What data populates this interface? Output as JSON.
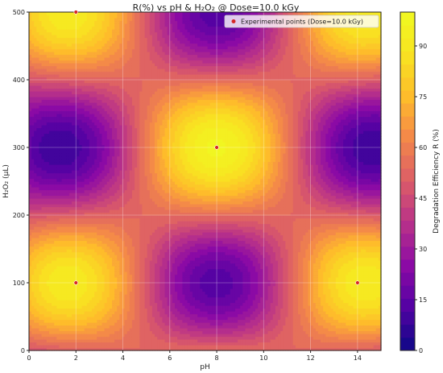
{
  "chart_data": {
    "type": "heatmap",
    "title": "R(%) vs pH & H₂O₂ @ Dose=10.0 kGy",
    "xlabel": "pH",
    "ylabel": "H₂O₂ (μL)",
    "colorbar_label": "Degradation Efficiency R (%)",
    "xlim": [
      0,
      15
    ],
    "ylim": [
      0,
      500
    ],
    "zlim": [
      0,
      100
    ],
    "x_ticks": [
      0,
      2,
      4,
      6,
      8,
      10,
      12,
      14
    ],
    "y_ticks": [
      0,
      100,
      200,
      300,
      400,
      500
    ],
    "colorbar_ticks": [
      0,
      15,
      30,
      45,
      60,
      75,
      90
    ],
    "colormap": "plasma",
    "grid": true,
    "legend": {
      "position": "top-right",
      "entries": [
        "Experimental points (Dose=10.0 kGy)"
      ]
    },
    "points_color": "#d62728",
    "points": [
      {
        "x": 2,
        "y": 100
      },
      {
        "x": 14,
        "y": 100
      },
      {
        "x": 8,
        "y": 300
      },
      {
        "x": 2,
        "y": 500
      }
    ],
    "surface": {
      "description_key": "saddle",
      "centers": {
        "x": 8,
        "y": 300
      },
      "x_halfwidth": 6.5,
      "y_halfwidth": 200,
      "z_center": 72,
      "z_amplitude": 64
    }
  }
}
